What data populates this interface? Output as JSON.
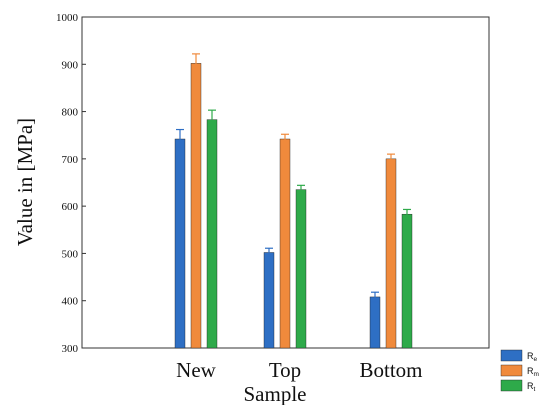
{
  "chart_data": {
    "type": "bar",
    "title": "",
    "xlabel": "Sample",
    "ylabel": "Value in [MPa]",
    "categories": [
      "New",
      "Top",
      "Bottom"
    ],
    "ylim": [
      300,
      1000
    ],
    "yticks": [
      300,
      400,
      500,
      600,
      700,
      800,
      900,
      1000
    ],
    "grid": false,
    "legend_position": "bottom-right-outside",
    "series": [
      {
        "name": "Re",
        "base": "R",
        "sub": "e",
        "color": "#2e6fc4",
        "values": [
          742,
          502,
          408
        ],
        "errors": [
          20,
          9,
          10
        ]
      },
      {
        "name": "Rm",
        "base": "R",
        "sub": "m",
        "color": "#f08a3c",
        "values": [
          902,
          742,
          700
        ],
        "errors": [
          20,
          10,
          10
        ]
      },
      {
        "name": "Rt",
        "base": "R",
        "sub": "t",
        "color": "#2eaa4a",
        "values": [
          783,
          635,
          583
        ],
        "errors": [
          20,
          9,
          10
        ]
      }
    ]
  }
}
